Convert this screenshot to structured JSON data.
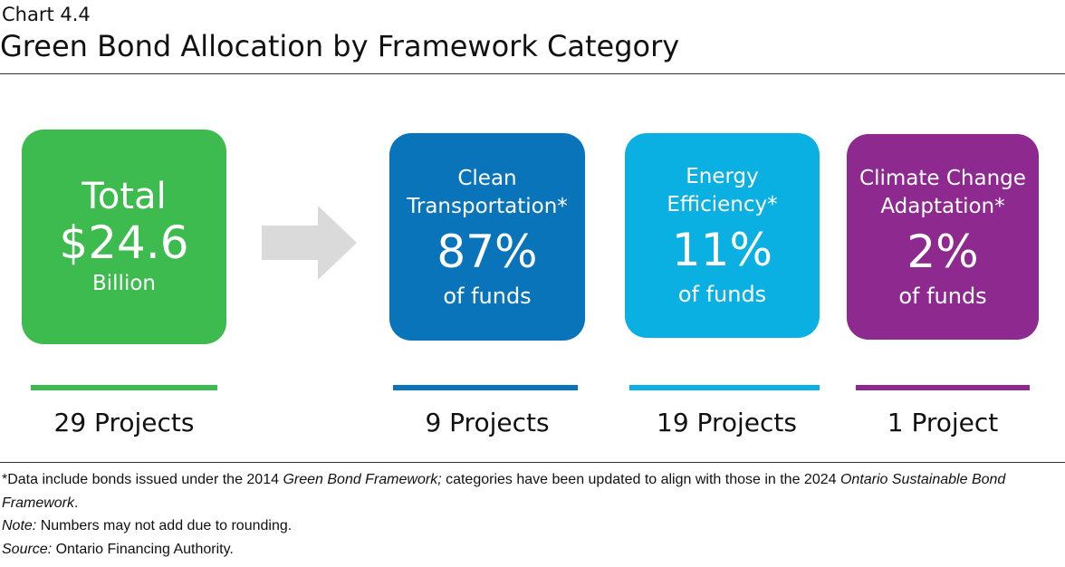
{
  "header": {
    "chart_number": "Chart 4.4",
    "title": "Green Bond Allocation by Framework Category"
  },
  "total": {
    "lines": [
      "Total",
      "$24.6",
      "Billion"
    ],
    "projects": "29 Projects"
  },
  "categories": [
    {
      "label": [
        "Clean",
        "Transportation*"
      ],
      "share": "87%",
      "unit": "of funds",
      "projects": "9 Projects"
    },
    {
      "label": [
        "Energy",
        "Efficiency*"
      ],
      "share": "11%",
      "unit": "of funds",
      "projects": "19 Projects"
    },
    {
      "label": [
        "Climate Change",
        "Adaptation*"
      ],
      "share": "2%",
      "unit": "of funds",
      "projects": "1 Project"
    }
  ],
  "footnotes": {
    "data": [
      "*Data include bonds issued under the 2014 ",
      "Green Bond Framework;",
      " categories have been updated to align with those in the 2024 ",
      "Ontario Sustainable Bond Framework",
      "."
    ],
    "note": [
      "Note:",
      " Numbers may not add due to rounding."
    ],
    "source": [
      "Source:",
      " Ontario Financing Authority."
    ]
  }
}
